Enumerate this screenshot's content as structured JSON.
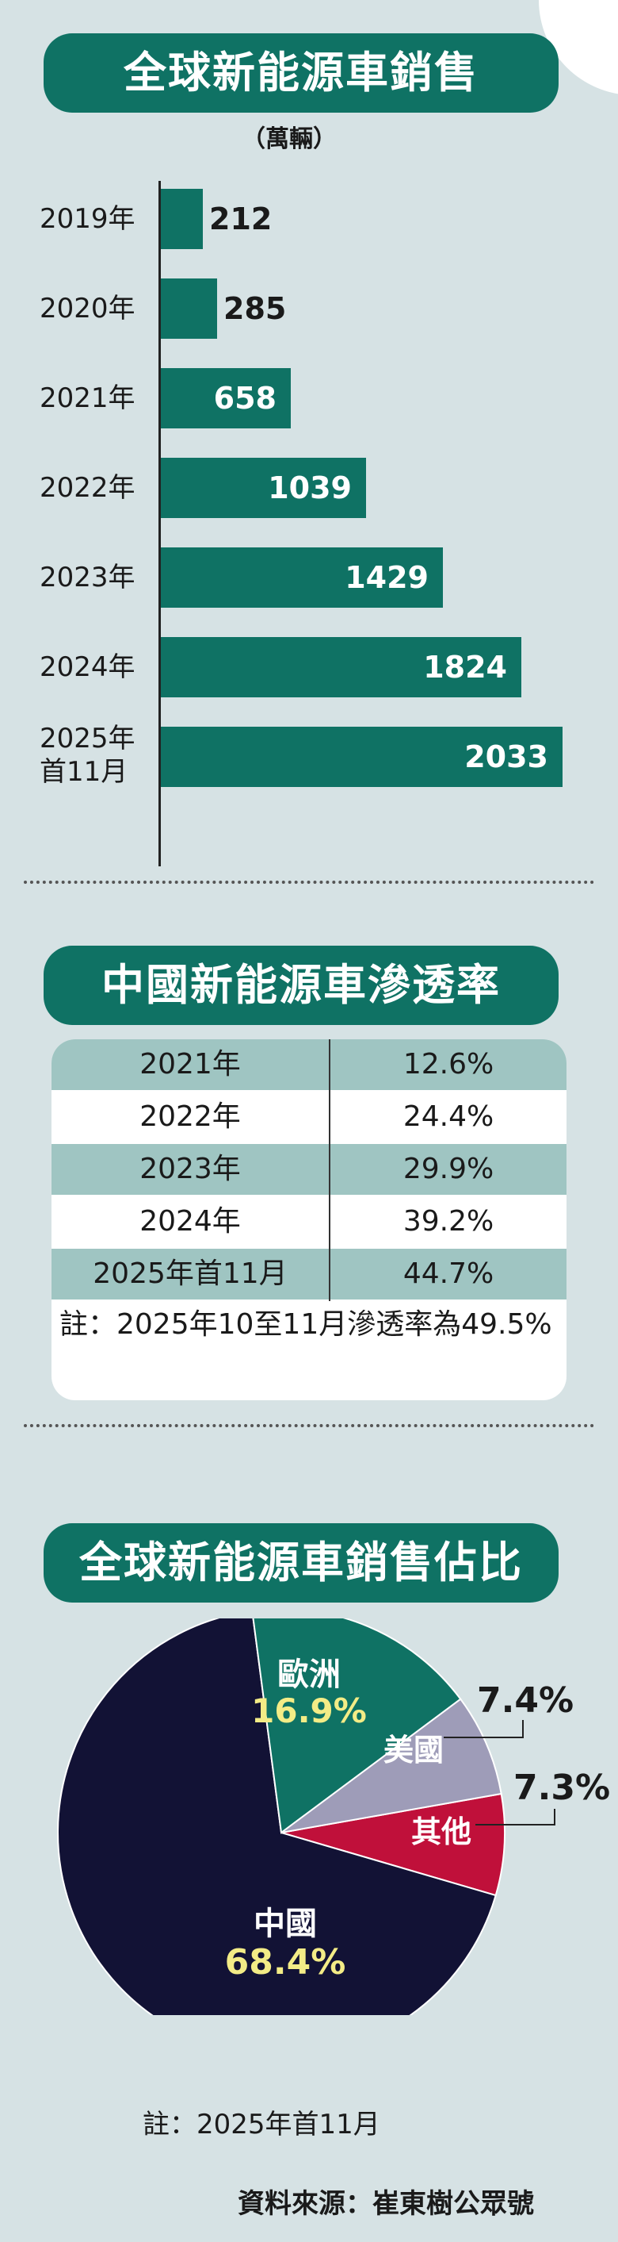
{
  "titles": {
    "sales": "全球新能源車銷售",
    "unit": "（萬輛）",
    "penetration": "中國新能源車滲透率",
    "share": "全球新能源車銷售佔比"
  },
  "bar_rows": [
    {
      "label": "2019年",
      "value": "212"
    },
    {
      "label": "2020年",
      "value": "285"
    },
    {
      "label": "2021年",
      "value": "658"
    },
    {
      "label": "2022年",
      "value": "1039"
    },
    {
      "label": "2023年",
      "value": "1429"
    },
    {
      "label": "2024年",
      "value": "1824"
    },
    {
      "label": "2025年\n首11月",
      "value": "2033"
    }
  ],
  "penetration_rows": [
    {
      "year": "2021年",
      "rate": "12.6%"
    },
    {
      "year": "2022年",
      "rate": "24.4%"
    },
    {
      "year": "2023年",
      "rate": "29.9%"
    },
    {
      "year": "2024年",
      "rate": "39.2%"
    },
    {
      "year": "2025年首11月",
      "rate": "44.7%"
    }
  ],
  "penetration_note": "註：2025年10至11月滲透率為49.5%",
  "pie_labels": {
    "europe": "歐洲",
    "europe_pct": "16.9%",
    "usa": "美國",
    "usa_pct": "7.4%",
    "other": "其他",
    "other_pct": "7.3%",
    "china": "中國",
    "china_pct": "68.4%"
  },
  "share_note": "註：2025年首11月",
  "source": "資料來源：崔東樹公眾號",
  "colors": {
    "teal": "#0f7264",
    "navy": "#121235",
    "lavender": "#9e9cb8",
    "crimson": "#c0103a",
    "highlight": "#f3ec86"
  },
  "chart_data": [
    {
      "type": "bar",
      "title": "全球新能源車銷售",
      "unit": "（萬輛）",
      "categories": [
        "2019年",
        "2020年",
        "2021年",
        "2022年",
        "2023年",
        "2024年",
        "2025年首11月"
      ],
      "values": [
        212,
        285,
        658,
        1039,
        1429,
        1824,
        2033
      ],
      "orientation": "horizontal"
    },
    {
      "type": "table",
      "title": "中國新能源車滲透率",
      "columns": [
        "year",
        "rate"
      ],
      "rows": [
        [
          "2021年",
          "12.6%"
        ],
        [
          "2022年",
          "24.4%"
        ],
        [
          "2023年",
          "29.9%"
        ],
        [
          "2024年",
          "39.2%"
        ],
        [
          "2025年首11月",
          "44.7%"
        ]
      ]
    },
    {
      "type": "pie",
      "title": "全球新能源車銷售佔比",
      "slices": [
        {
          "name": "中國",
          "value": 68.4,
          "color": "#121235"
        },
        {
          "name": "歐洲",
          "value": 16.9,
          "color": "#0f7264"
        },
        {
          "name": "美國",
          "value": 7.4,
          "color": "#9e9cb8"
        },
        {
          "name": "其他",
          "value": 7.3,
          "color": "#c0103a"
        }
      ]
    }
  ]
}
